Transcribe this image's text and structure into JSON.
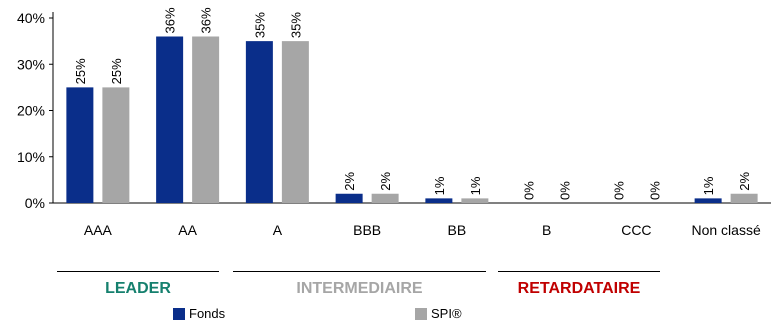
{
  "chart_data": {
    "type": "bar",
    "categories": [
      "AAA",
      "AA",
      "A",
      "BBB",
      "BB",
      "B",
      "CCC",
      "Non classé"
    ],
    "series": [
      {
        "name": "Fonds",
        "values": [
          25,
          36,
          35,
          2,
          1,
          0,
          0,
          1
        ],
        "labels": [
          "25%",
          "36%",
          "35%",
          "2%",
          "1%",
          "0%",
          "0%",
          "1%"
        ],
        "color": "#0a2e8a"
      },
      {
        "name": "SPI®",
        "values": [
          25,
          36,
          35,
          2,
          1,
          0,
          0,
          2
        ],
        "labels": [
          "25%",
          "36%",
          "35%",
          "2%",
          "1%",
          "0%",
          "0%",
          "2%"
        ],
        "color": "#a6a6a6"
      }
    ],
    "ylim": [
      0,
      40
    ],
    "yticks": [
      "0%",
      "10%",
      "20%",
      "30%",
      "40%"
    ],
    "grid": false,
    "legend_position": "bottom",
    "groups": [
      {
        "name": "LEADER",
        "color": "#15806e"
      },
      {
        "name": "INTERMEDIAIRE",
        "color": "#a6a6a6"
      },
      {
        "name": "RETARDATAIRE",
        "color": "#c00000"
      }
    ]
  }
}
